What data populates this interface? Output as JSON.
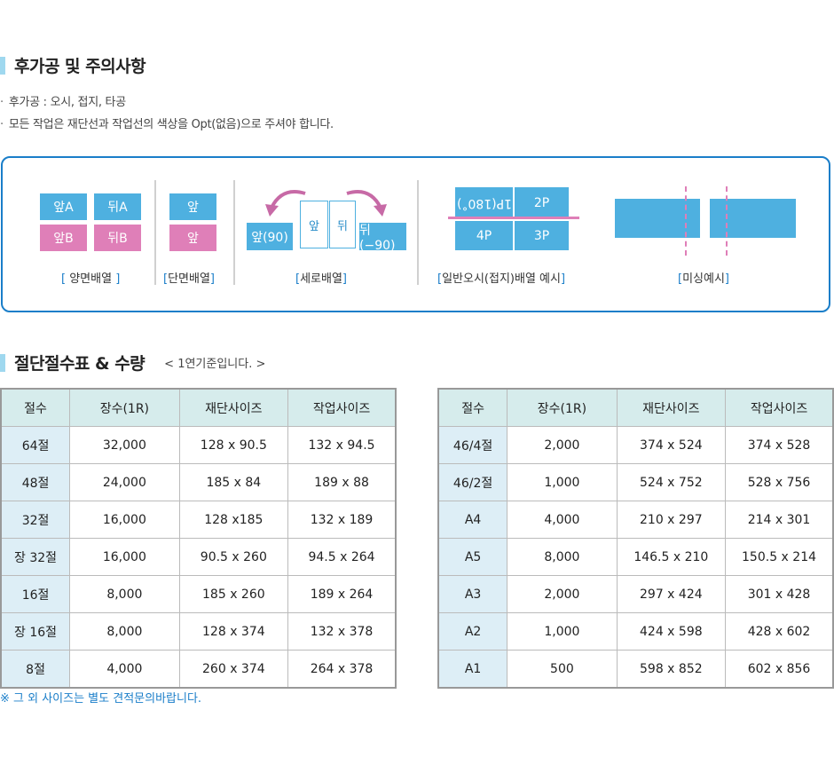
{
  "section1": {
    "title": "후가공 및 주의사항"
  },
  "notes": [
    "후가공 : 오시, 접지, 타공",
    "모든 작업은 재단선과 작업선의 색상을 Opt(없음)으로 주셔야 합니다."
  ],
  "diagram": {
    "duplex": {
      "a_front": "앞A",
      "a_back": "뒤A",
      "b_front": "앞B",
      "b_back": "뒤B",
      "caption": "양면배열"
    },
    "single": {
      "top": "앞",
      "bottom": "앞",
      "caption": "단면배열"
    },
    "vertical": {
      "left": "앞(90)",
      "mid_front": "앞",
      "mid_back": "뒤",
      "right": "뒤(−90)",
      "caption": "세로배열"
    },
    "fold": {
      "p1": "1P(180˚)",
      "p2": "2P",
      "p4": "4P",
      "p3": "3P",
      "caption": "일반오시(접지)배열 예시"
    },
    "perf": {
      "caption": "미싱예시"
    },
    "bracket_open": "[",
    "bracket_close": "]"
  },
  "section2": {
    "title": "절단절수표 & 수량",
    "subtitle": "< 1연기준입니다. >"
  },
  "table_left": {
    "headers": [
      "절수",
      "장수(1R)",
      "재단사이즈",
      "작업사이즈"
    ],
    "rows": [
      [
        "64절",
        "32,000",
        "128 x 90.5",
        "132 x 94.5"
      ],
      [
        "48절",
        "24,000",
        "185 x 84",
        "189 x 88"
      ],
      [
        "32절",
        "16,000",
        "128  x185",
        "132 x 189"
      ],
      [
        "장 32절",
        "16,000",
        "90.5 x 260",
        "94.5 x 264"
      ],
      [
        "16절",
        "8,000",
        "185 x 260",
        "189 x 264"
      ],
      [
        "장 16절",
        "8,000",
        "128 x 374",
        "132 x 378"
      ],
      [
        "8절",
        "4,000",
        "260 x 374",
        "264 x 378"
      ]
    ]
  },
  "table_right": {
    "headers": [
      "절수",
      "장수(1R)",
      "재단사이즈",
      "작업사이즈"
    ],
    "rows": [
      [
        "46/4절",
        "2,000",
        "374 x 524",
        "374 x 528"
      ],
      [
        "46/2절",
        "1,000",
        "524 x 752",
        "528 x 756"
      ],
      [
        "A4",
        "4,000",
        "210 x 297",
        "214 x 301"
      ],
      [
        "A5",
        "8,000",
        "146.5 x 210",
        "150.5 x 214"
      ],
      [
        "A3",
        "2,000",
        "297 x 424",
        "301 x 428"
      ],
      [
        "A2",
        "1,000",
        "424 x 598",
        "428 x 602"
      ],
      [
        "A1",
        "500",
        "598 x 852",
        "602 x 856"
      ]
    ]
  },
  "footnote": "※ 그 외 사이즈는 별도 견적문의바랍니다.",
  "colors": {
    "accent": "#1a7ec9",
    "block_blue": "#4eb0e0",
    "block_pink": "#df7fb8",
    "header_bg": "#d6ecec",
    "key_bg": "#ddeef6"
  }
}
